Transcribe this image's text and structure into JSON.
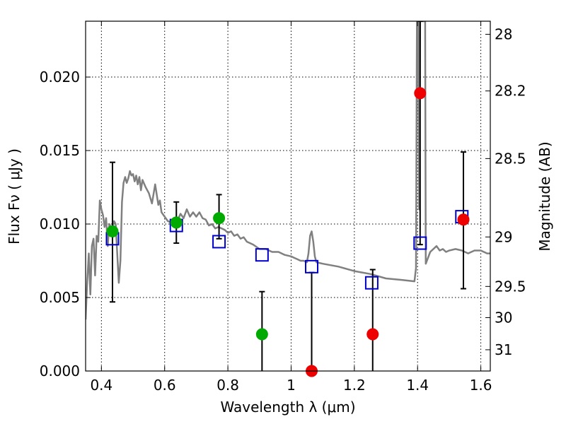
{
  "chart_data": {
    "type": "scatter",
    "title": "",
    "xlabel": "Wavelength  λ (μm)",
    "ylabel": "Flux  Fν  ( μJy )",
    "y2label": "Magnitude (AB)",
    "xlim": [
      0.35,
      1.63
    ],
    "ylim": [
      0.0,
      0.0238
    ],
    "grid": true,
    "x_ticks": [
      {
        "value": 0.4,
        "label": "0.4"
      },
      {
        "value": 0.6,
        "label": "0.6"
      },
      {
        "value": 0.8,
        "label": "0.8"
      },
      {
        "value": 1.0,
        "label": "1"
      },
      {
        "value": 1.2,
        "label": "1.2"
      },
      {
        "value": 1.4,
        "label": "1.4"
      },
      {
        "value": 1.6,
        "label": "1.6"
      }
    ],
    "y_ticks": [
      {
        "value": 0.0,
        "label": "0.000"
      },
      {
        "value": 0.005,
        "label": "0.005"
      },
      {
        "value": 0.01,
        "label": "0.010"
      },
      {
        "value": 0.015,
        "label": "0.015"
      },
      {
        "value": 0.02,
        "label": "0.020"
      }
    ],
    "y2_ticks": [
      {
        "value": 28,
        "label": "28"
      },
      {
        "value": 28.2,
        "label": "28.2"
      },
      {
        "value": 28.5,
        "label": "28.5"
      },
      {
        "value": 29,
        "label": "29"
      },
      {
        "value": 29.5,
        "label": "29.5"
      },
      {
        "value": 30,
        "label": "30"
      },
      {
        "value": 31,
        "label": "31"
      }
    ],
    "model_color": "#808080",
    "model_spectrum": [
      [
        0.35,
        0.0035
      ],
      [
        0.355,
        0.006
      ],
      [
        0.36,
        0.008
      ],
      [
        0.365,
        0.0052
      ],
      [
        0.37,
        0.0085
      ],
      [
        0.375,
        0.009
      ],
      [
        0.38,
        0.0065
      ],
      [
        0.385,
        0.0092
      ],
      [
        0.39,
        0.0088
      ],
      [
        0.395,
        0.0116
      ],
      [
        0.4,
        0.011
      ],
      [
        0.405,
        0.0106
      ],
      [
        0.41,
        0.0098
      ],
      [
        0.415,
        0.0104
      ],
      [
        0.42,
        0.0085
      ],
      [
        0.425,
        0.01
      ],
      [
        0.43,
        0.0098
      ],
      [
        0.435,
        0.0098
      ],
      [
        0.44,
        0.0102
      ],
      [
        0.445,
        0.01
      ],
      [
        0.45,
        0.008
      ],
      [
        0.455,
        0.006
      ],
      [
        0.46,
        0.0075
      ],
      [
        0.465,
        0.0115
      ],
      [
        0.47,
        0.0128
      ],
      [
        0.475,
        0.0132
      ],
      [
        0.48,
        0.0128
      ],
      [
        0.485,
        0.0131
      ],
      [
        0.49,
        0.0136
      ],
      [
        0.495,
        0.0133
      ],
      [
        0.5,
        0.0134
      ],
      [
        0.505,
        0.0129
      ],
      [
        0.51,
        0.0133
      ],
      [
        0.515,
        0.0127
      ],
      [
        0.52,
        0.0132
      ],
      [
        0.525,
        0.0123
      ],
      [
        0.53,
        0.013
      ],
      [
        0.54,
        0.0125
      ],
      [
        0.55,
        0.0121
      ],
      [
        0.56,
        0.0114
      ],
      [
        0.57,
        0.0127
      ],
      [
        0.58,
        0.0113
      ],
      [
        0.585,
        0.0116
      ],
      [
        0.59,
        0.0108
      ],
      [
        0.6,
        0.0105
      ],
      [
        0.61,
        0.0102
      ],
      [
        0.62,
        0.0101
      ],
      [
        0.63,
        0.0104
      ],
      [
        0.64,
        0.0102
      ],
      [
        0.65,
        0.0107
      ],
      [
        0.66,
        0.0104
      ],
      [
        0.67,
        0.011
      ],
      [
        0.68,
        0.0105
      ],
      [
        0.69,
        0.0108
      ],
      [
        0.7,
        0.0105
      ],
      [
        0.71,
        0.0108
      ],
      [
        0.72,
        0.0104
      ],
      [
        0.73,
        0.0103
      ],
      [
        0.74,
        0.0099
      ],
      [
        0.75,
        0.01
      ],
      [
        0.76,
        0.0097
      ],
      [
        0.77,
        0.0098
      ],
      [
        0.78,
        0.0097
      ],
      [
        0.79,
        0.0096
      ],
      [
        0.8,
        0.0094
      ],
      [
        0.81,
        0.0095
      ],
      [
        0.82,
        0.0092
      ],
      [
        0.83,
        0.0093
      ],
      [
        0.84,
        0.009
      ],
      [
        0.85,
        0.0091
      ],
      [
        0.86,
        0.0088
      ],
      [
        0.88,
        0.0086
      ],
      [
        0.9,
        0.0083
      ],
      [
        0.92,
        0.0083
      ],
      [
        0.94,
        0.0081
      ],
      [
        0.96,
        0.0081
      ],
      [
        0.98,
        0.0079
      ],
      [
        1.0,
        0.0078
      ],
      [
        1.01,
        0.0077
      ],
      [
        1.02,
        0.0076
      ],
      [
        1.03,
        0.0075
      ],
      [
        1.04,
        0.0075
      ],
      [
        1.05,
        0.0074
      ],
      [
        1.055,
        0.008
      ],
      [
        1.06,
        0.0092
      ],
      [
        1.065,
        0.0095
      ],
      [
        1.07,
        0.0088
      ],
      [
        1.075,
        0.0078
      ],
      [
        1.08,
        0.0074
      ],
      [
        1.1,
        0.0073
      ],
      [
        1.15,
        0.0071
      ],
      [
        1.2,
        0.0068
      ],
      [
        1.25,
        0.0066
      ],
      [
        1.3,
        0.0063
      ],
      [
        1.35,
        0.0062
      ],
      [
        1.39,
        0.0061
      ],
      [
        1.395,
        0.007
      ],
      [
        1.398,
        0.0238
      ],
      [
        1.402,
        0.0238
      ],
      [
        1.405,
        0.011
      ],
      [
        1.408,
        0.0238
      ],
      [
        1.41,
        0.0238
      ],
      [
        1.42,
        0.0238
      ],
      [
        1.424,
        0.0238
      ],
      [
        1.426,
        0.0073
      ],
      [
        1.44,
        0.0081
      ],
      [
        1.46,
        0.0085
      ],
      [
        1.47,
        0.0082
      ],
      [
        1.48,
        0.0083
      ],
      [
        1.49,
        0.0081
      ],
      [
        1.5,
        0.0082
      ],
      [
        1.52,
        0.0083
      ],
      [
        1.54,
        0.0082
      ],
      [
        1.56,
        0.008
      ],
      [
        1.57,
        0.0081
      ],
      [
        1.58,
        0.0082
      ],
      [
        1.6,
        0.0082
      ],
      [
        1.62,
        0.008
      ],
      [
        1.63,
        0.008
      ]
    ],
    "model_fluxes": {
      "color": "#0000cc",
      "points": [
        {
          "x": 0.435,
          "y": 0.009
        },
        {
          "x": 0.637,
          "y": 0.0099
        },
        {
          "x": 0.772,
          "y": 0.0088
        },
        {
          "x": 0.908,
          "y": 0.0079
        },
        {
          "x": 1.065,
          "y": 0.0071
        },
        {
          "x": 1.255,
          "y": 0.006
        },
        {
          "x": 1.408,
          "y": 0.0087
        },
        {
          "x": 1.54,
          "y": 0.0105
        }
      ]
    },
    "observations": [
      {
        "x": 0.435,
        "y": 0.0095,
        "err_low": 0.0047,
        "err_high": 0.0142,
        "color": "#00aa00"
      },
      {
        "x": 0.637,
        "y": 0.0101,
        "err_low": 0.0087,
        "err_high": 0.0115,
        "color": "#00aa00"
      },
      {
        "x": 0.772,
        "y": 0.0104,
        "err_low": 0.009,
        "err_high": 0.012,
        "color": "#00aa00"
      },
      {
        "x": 0.908,
        "y": 0.0025,
        "err_low": 0.0,
        "err_high": 0.0054,
        "color": "#00aa00"
      },
      {
        "x": 1.065,
        "y": 0.0,
        "err_low": 0.0,
        "err_high": 0.0067,
        "color": "#ee0000"
      },
      {
        "x": 1.258,
        "y": 0.0025,
        "err_low": 0.0,
        "err_high": 0.0069,
        "color": "#ee0000"
      },
      {
        "x": 1.408,
        "y": 0.0189,
        "err_low": 0.0086,
        "err_high": 0.0238,
        "color": "#ee0000"
      },
      {
        "x": 1.545,
        "y": 0.0103,
        "err_low": 0.0056,
        "err_high": 0.0149,
        "color": "#ee0000"
      }
    ]
  }
}
